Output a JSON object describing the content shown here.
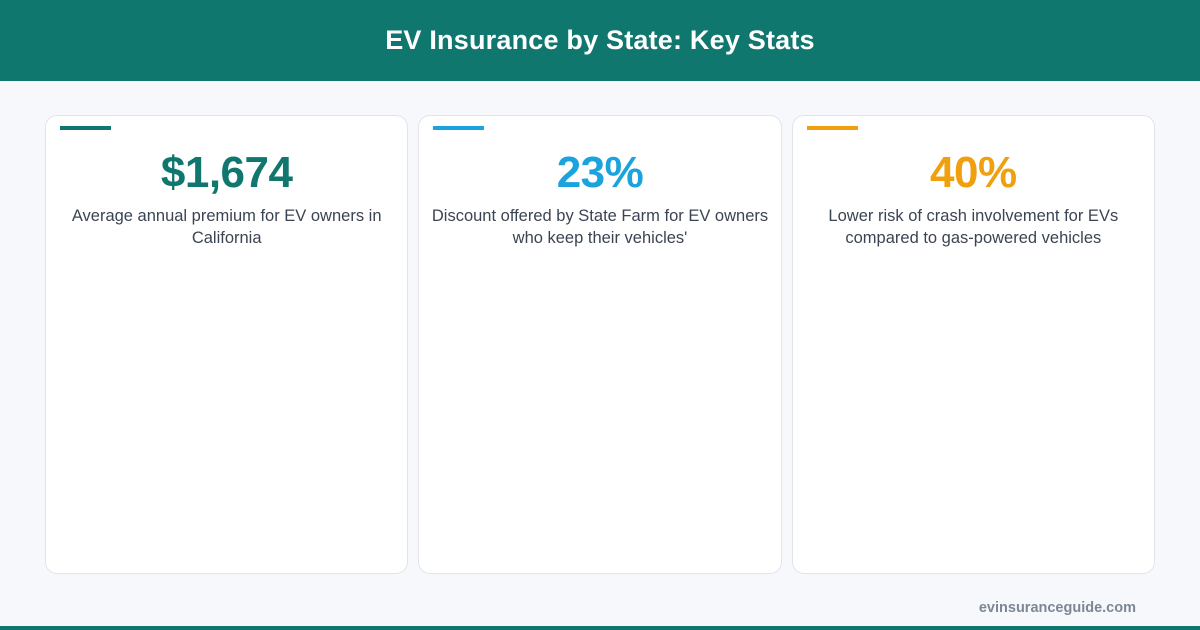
{
  "header": {
    "title": "EV Insurance by State: Key Stats"
  },
  "colors": {
    "brand": "#10776e",
    "teal": "#10776e",
    "blue": "#1aa3dd",
    "orange": "#f0a00e"
  },
  "cards": [
    {
      "value": "$1,674",
      "description": "Average annual premium for EV owners in California",
      "color": "#10776e"
    },
    {
      "value": "23%",
      "description": "Discount offered by State Farm for EV owners who keep their vehicles'",
      "color": "#1aa3dd"
    },
    {
      "value": "40%",
      "description": "Lower risk of crash involvement for EVs compared to gas-powered vehicles",
      "color": "#f0a00e"
    }
  ],
  "footer": {
    "site": "evinsuranceguide.com"
  }
}
